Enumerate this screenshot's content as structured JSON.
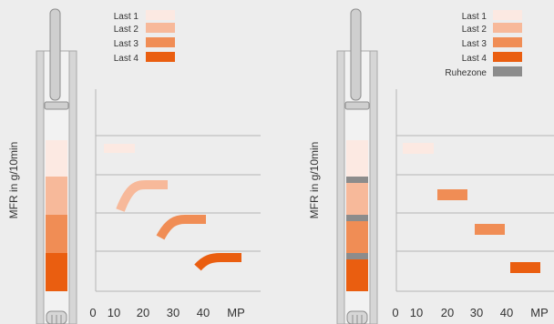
{
  "diagram_left": {
    "legend": [
      {
        "label": "Last 1",
        "color": "#fce9e2"
      },
      {
        "label": "Last 2",
        "color": "#f7b99a"
      },
      {
        "label": "Last 3",
        "color": "#f08d55"
      },
      {
        "label": "Last 4",
        "color": "#ea5e10"
      }
    ],
    "y_axis_label": "MFR in g/10min",
    "x_ticks": [
      "0",
      "10",
      "20",
      "30",
      "40"
    ],
    "x_unit": "MP"
  },
  "diagram_right": {
    "legend": [
      {
        "label": "Last 1",
        "color": "#fce9e2"
      },
      {
        "label": "Last 2",
        "color": "#f7b99a"
      },
      {
        "label": "Last 3",
        "color": "#f08d55"
      },
      {
        "label": "Last 4",
        "color": "#ea5e10"
      },
      {
        "label": "Ruhezone",
        "color": "#8c8c8c"
      }
    ],
    "y_axis_label": "MFR in g/10min",
    "x_ticks": [
      "0",
      "10",
      "20",
      "30",
      "40"
    ],
    "x_unit": "MP"
  },
  "colors": {
    "background": "#ededed",
    "axis": "#b5b5b5",
    "tube": "#d9d9d9",
    "text": "#333333"
  }
}
